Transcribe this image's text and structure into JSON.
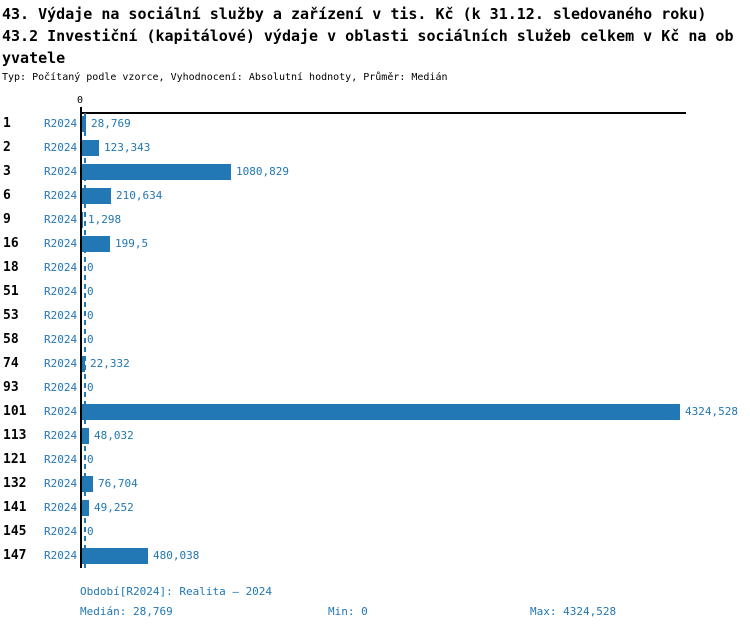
{
  "header": {
    "title_line1": "43. Výdaje na sociální služby a zařízení v tis. Kč (k 31.12. sledovaného roku)",
    "title_line2": "43.2 Investiční (kapitálové) výdaje v oblasti sociálních služeb celkem v Kč na ob",
    "title_line3": "yvatele",
    "meta": "Typ: Počítaný podle vzorce, Vyhodnocení: Absolutní hodnoty, Průměr: Medián"
  },
  "chart_data": {
    "type": "bar",
    "orientation": "horizontal",
    "title": "43. Výdaje na sociální služby a zařízení v tis. Kč (k 31.12. sledovaného roku)",
    "subtitle": "43.2 Investiční (kapitálové) výdaje v oblasti sociálních služeb celkem v Kč na obyvatele",
    "axis_tick_zero": "0",
    "xlim": [
      0,
      4324.528
    ],
    "median_value": 28.769,
    "bar_color": "#2277b5",
    "series_name": "R2024",
    "categories": [
      "1",
      "2",
      "3",
      "6",
      "9",
      "16",
      "18",
      "51",
      "53",
      "58",
      "74",
      "93",
      "101",
      "113",
      "121",
      "132",
      "141",
      "145",
      "147"
    ],
    "values": [
      28.769,
      123.343,
      1080.829,
      210.634,
      1.298,
      199.5,
      0,
      0,
      0,
      0,
      22.332,
      0,
      4324.528,
      48.032,
      0,
      76.704,
      49.252,
      0,
      480.038
    ],
    "value_labels": [
      "28,769",
      "123,343",
      "1080,829",
      "210,634",
      "1,298",
      "199,5",
      "0",
      "0",
      "0",
      "0",
      "22,332",
      "0",
      "4324,528",
      "48,032",
      "0",
      "76,704",
      "49,252",
      "0",
      "480,038"
    ]
  },
  "footer": {
    "period": "Období[R2024]: Realita – 2024",
    "median": "Medián: 28,769",
    "min": "Min: 0",
    "max": "Max: 4324,528"
  }
}
